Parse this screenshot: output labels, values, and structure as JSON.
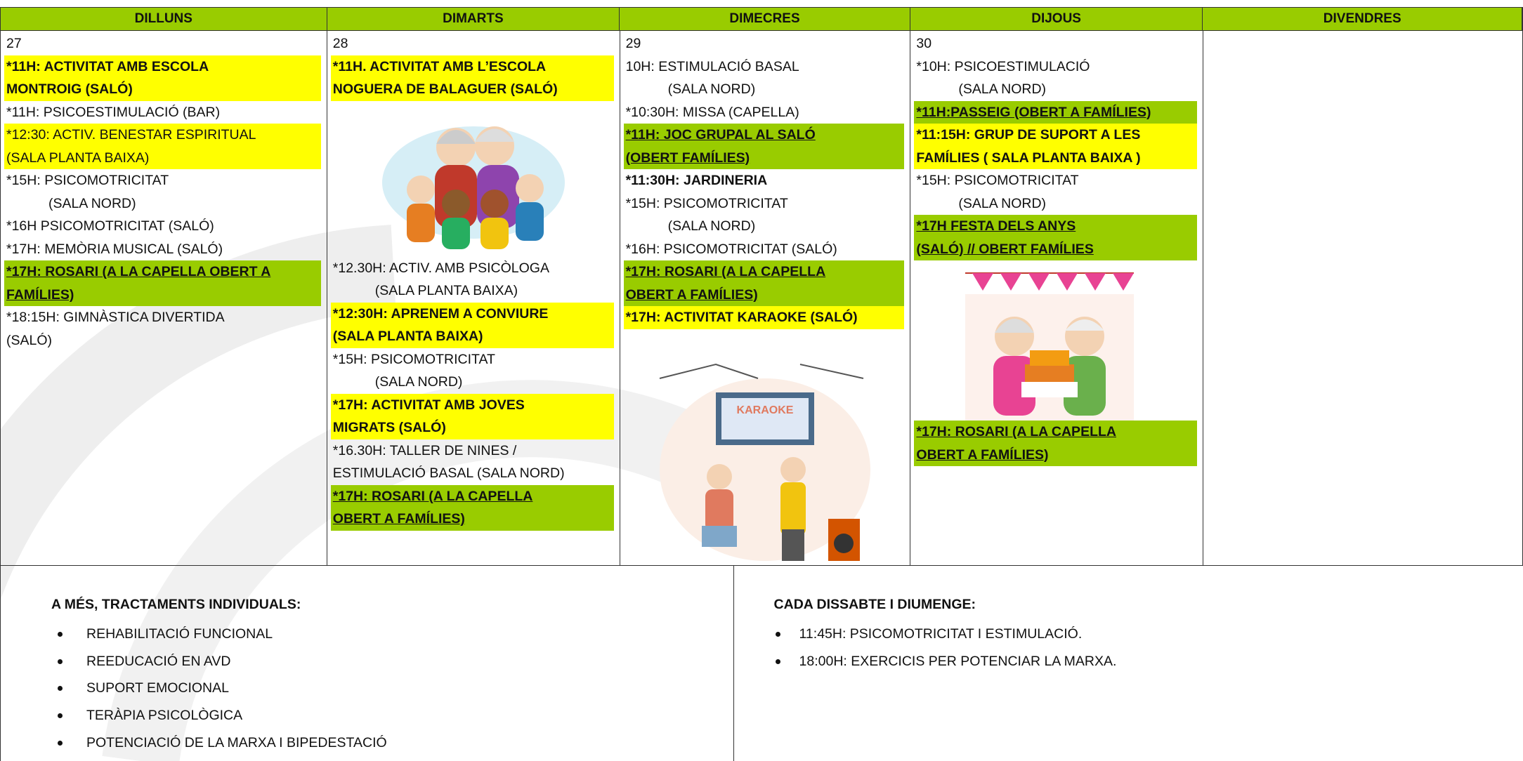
{
  "header": {
    "days": [
      "DILLUNS",
      "DIMARTS",
      "DIMECRES",
      "DIJOUS",
      "DIVENDRES"
    ]
  },
  "columns": [
    {
      "date": "27",
      "items": [
        {
          "lines": [
            "*11H: ACTIVITAT AMB ESCOLA",
            "MONTROIG (SALÓ)"
          ],
          "highlight": "#ffff00",
          "bold": true
        },
        {
          "lines": [
            "*11H: PSICOESTIMULACIÓ (BAR)"
          ]
        },
        {
          "lines": [
            "*12:30: ACTIV.  BENESTAR ESPIRITUAL",
            "(SALA PLANTA BAIXA)"
          ],
          "highlight": "#ffff00"
        },
        {
          "lines": [
            "*15H: PSICOMOTRICITAT",
            "(SALA NORD)"
          ]
        },
        {
          "lines": [
            "*16H PSICOMOTRICITAT (SALÓ)"
          ]
        },
        {
          "lines": [
            "*17H: MEMÒRIA MUSICAL (SALÓ)"
          ]
        },
        {
          "lines": [
            "*17H: ROSARI (A LA CAPELLA OBERT A",
            "FAMÍLIES)"
          ],
          "highlight": "#99cc00",
          "bold": true,
          "underline": true
        },
        {
          "lines": [
            "*18:15H: GIMNÀSTICA DIVERTIDA",
            "(SALÓ)"
          ]
        }
      ]
    },
    {
      "date": "28",
      "items": [
        {
          "lines": [
            "*11H. ACTIVITAT AMB L’ESCOLA",
            "NOGUERA DE BALAGUER (SALÓ)"
          ],
          "highlight": "#ffff00",
          "bold": true
        },
        {
          "lines": [
            "*12.30H: ACTIV. AMB PSICÒLOGA",
            "(SALA PLANTA BAIXA)"
          ]
        },
        {
          "lines": [
            "*12:30H: APRENEM A CONVIURE",
            "(SALA PLANTA BAIXA)"
          ],
          "highlight": "#ffff00",
          "bold": true
        },
        {
          "lines": [
            "*15H: PSICOMOTRICITAT",
            "(SALA NORD)"
          ]
        },
        {
          "lines": [
            "*17H: ACTIVITAT AMB JOVES",
            "MIGRATS (SALÓ)"
          ],
          "highlight": "#ffff00",
          "bold": true
        },
        {
          "lines": [
            "*16.30H: TALLER DE NINES /",
            "ESTIMULACIÓ BASAL (SALA NORD)"
          ]
        },
        {
          "lines": [
            "*17H: ROSARI (A LA CAPELLA",
            "OBERT A FAMÍLIES)"
          ],
          "highlight": "#99cc00",
          "bold": true,
          "underline": true
        }
      ]
    },
    {
      "date": "29",
      "items": [
        {
          "lines": [
            "10H: ESTIMULACIÓ BASAL",
            "(SALA NORD)"
          ]
        },
        {
          "lines": [
            "*10:30H: MISSA (CAPELLA)"
          ]
        },
        {
          "lines": [
            "*11H: JOC GRUPAL AL SALÓ",
            "(OBERT FAMÍLIES)"
          ],
          "highlight": "#99cc00",
          "bold": true,
          "underline": true
        },
        {
          "lines": [
            "*11:30H: JARDINERIA"
          ],
          "bold": true
        },
        {
          "lines": [
            "*15H: PSICOMOTRICITAT",
            "(SALA NORD)"
          ]
        },
        {
          "lines": [
            "*16H: PSICOMOTRICITAT (SALÓ)"
          ]
        },
        {
          "lines": [
            "*17H: ROSARI (A LA CAPELLA",
            "OBERT A FAMÍLIES)"
          ],
          "highlight": "#99cc00",
          "bold": true,
          "underline": true
        },
        {
          "lines": [
            "*17H: ACTIVITAT KARAOKE (SALÓ)"
          ],
          "highlight": "#ffff00",
          "bold": true
        }
      ]
    },
    {
      "date": "30",
      "items": [
        {
          "lines": [
            "*10H:  PSICOESTIMULACIÓ",
            "(SALA NORD)"
          ]
        },
        {
          "lines": [
            "*11H:PASSEIG (OBERT A FAMÍLIES)"
          ],
          "highlight": "#99cc00",
          "bold": true,
          "underline": true
        },
        {
          "lines": [
            "*11:15H: GRUP DE SUPORT A LES",
            "FAMÍLIES ( SALA PLANTA BAIXA )"
          ],
          "highlight": "#ffff00",
          "bold": true
        },
        {
          "lines": [
            "*15H: PSICOMOTRICITAT",
            "(SALA NORD)"
          ]
        },
        {
          "lines": [
            "*17H FESTA DELS ANYS",
            "(SALÓ) // OBERT FAMÍLIES"
          ],
          "highlight": "#99cc00",
          "bold": true,
          "underline": true
        },
        {
          "lines": [
            "*17H: ROSARI (A LA CAPELLA",
            "OBERT A FAMÍLIES)"
          ],
          "highlight": "#99cc00",
          "bold": true,
          "underline": true
        }
      ]
    },
    {
      "items": []
    }
  ],
  "footer": {
    "left": {
      "title": "A MÉS, TRACTAMENTS INDIVIDUALS:",
      "items": [
        "REHABILITACIÓ FUNCIONAL",
        "REEDUCACIÓ EN AVD",
        "SUPORT EMOCIONAL",
        "TERÀPIA PSICOLÒGICA",
        "POTENCIACIÓ DE LA MARXA I BIPEDESTACIÓ"
      ]
    },
    "right": {
      "title": "CADA DISSABTE I DIUMENGE:",
      "items": [
        "11:45H: PSICOMOTRICITAT I ESTIMULACIÓ.",
        "18:00H: EXERCICIS PER POTENCIAR LA MARXA."
      ]
    }
  }
}
